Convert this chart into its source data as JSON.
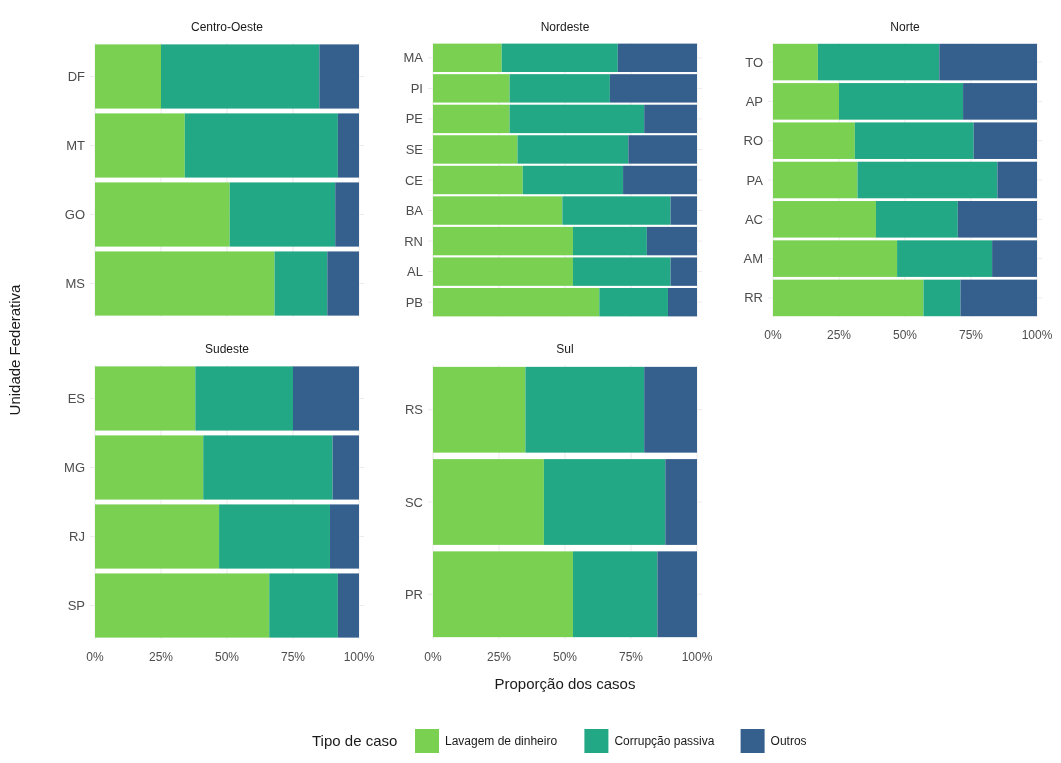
{
  "chart_data": [
    {
      "type": "bar",
      "title": "Centro-Oeste",
      "orientation": "horizontal",
      "stacked": true,
      "categories": [
        "DF",
        "MT",
        "GO",
        "MS"
      ],
      "xlim": [
        0,
        100
      ],
      "xticks": [
        {
          "value": 0,
          "label": "0%"
        },
        {
          "value": 25,
          "label": "25%"
        },
        {
          "value": 50,
          "label": "50%"
        },
        {
          "value": 75,
          "label": "75%"
        },
        {
          "value": 100,
          "label": "100%"
        }
      ],
      "tick_labels": "y",
      "grid": true,
      "ylabel": "Unidade Federativa",
      "legend": "bottom",
      "legend_title": "Tipo de caso",
      "series": [
        {
          "name": "Lavagem de dinheiro",
          "color": "#7ad151",
          "values": [
            25,
            34,
            51,
            68
          ]
        },
        {
          "name": "Corrupção passiva",
          "color": "#22a884",
          "values": [
            60,
            58,
            40,
            20
          ]
        },
        {
          "name": "Outros",
          "color": "#355f8d",
          "values": [
            15,
            8,
            9,
            12
          ]
        }
      ]
    },
    {
      "type": "bar",
      "title": "Nordeste",
      "orientation": "horizontal",
      "stacked": true,
      "categories": [
        "MA",
        "PI",
        "PE",
        "SE",
        "CE",
        "BA",
        "RN",
        "AL",
        "PB"
      ],
      "xlim": [
        0,
        100
      ],
      "xticks": [
        {
          "value": 0,
          "label": "0%"
        },
        {
          "value": 25,
          "label": "25%"
        },
        {
          "value": 50,
          "label": "50%"
        },
        {
          "value": 75,
          "label": "75%"
        },
        {
          "value": 100,
          "label": "100%"
        }
      ],
      "tick_labels": "y",
      "grid": true,
      "series": [
        {
          "name": "Lavagem de dinheiro",
          "color": "#7ad151",
          "values": [
            26,
            29,
            29,
            32,
            34,
            49,
            53,
            53,
            63
          ]
        },
        {
          "name": "Corrupção passiva",
          "color": "#22a884",
          "values": [
            44,
            38,
            51,
            42,
            38,
            41,
            28,
            37,
            26
          ]
        },
        {
          "name": "Outros",
          "color": "#355f8d",
          "values": [
            30,
            33,
            20,
            26,
            28,
            10,
            19,
            10,
            11
          ]
        }
      ]
    },
    {
      "type": "bar",
      "title": "Norte",
      "orientation": "horizontal",
      "stacked": true,
      "categories": [
        "TO",
        "AP",
        "RO",
        "PA",
        "AC",
        "AM",
        "RR"
      ],
      "xlim": [
        0,
        100
      ],
      "xticks": [
        {
          "value": 0,
          "label": "0%"
        },
        {
          "value": 25,
          "label": "25%"
        },
        {
          "value": 50,
          "label": "50%"
        },
        {
          "value": 75,
          "label": "75%"
        },
        {
          "value": 100,
          "label": "100%"
        }
      ],
      "grid": true,
      "series": [
        {
          "name": "Lavagem de dinheiro",
          "color": "#7ad151",
          "values": [
            17,
            25,
            31,
            32,
            39,
            47,
            57
          ]
        },
        {
          "name": "Corrupção passiva",
          "color": "#22a884",
          "values": [
            46,
            47,
            45,
            53,
            31,
            36,
            14
          ]
        },
        {
          "name": "Outros",
          "color": "#355f8d",
          "values": [
            37,
            28,
            24,
            15,
            30,
            17,
            29
          ]
        }
      ]
    },
    {
      "type": "bar",
      "title": "Sudeste",
      "orientation": "horizontal",
      "stacked": true,
      "categories": [
        "ES",
        "MG",
        "RJ",
        "SP"
      ],
      "xlim": [
        0,
        100
      ],
      "xticks": [
        {
          "value": 0,
          "label": "0%"
        },
        {
          "value": 25,
          "label": "25%"
        },
        {
          "value": 50,
          "label": "50%"
        },
        {
          "value": 75,
          "label": "75%"
        },
        {
          "value": 100,
          "label": "100%"
        }
      ],
      "grid": true,
      "series": [
        {
          "name": "Lavagem de dinheiro",
          "color": "#7ad151",
          "values": [
            38,
            41,
            47,
            66
          ]
        },
        {
          "name": "Corrupção passiva",
          "color": "#22a884",
          "values": [
            37,
            49,
            42,
            26
          ]
        },
        {
          "name": "Outros",
          "color": "#355f8d",
          "values": [
            25,
            10,
            11,
            8
          ]
        }
      ]
    },
    {
      "type": "bar",
      "title": "Sul",
      "orientation": "horizontal",
      "stacked": true,
      "categories": [
        "RS",
        "SC",
        "PR"
      ],
      "xlim": [
        0,
        100
      ],
      "xticks": [
        {
          "value": 0,
          "label": "0%"
        },
        {
          "value": 25,
          "label": "25%"
        },
        {
          "value": 50,
          "label": "50%"
        },
        {
          "value": 75,
          "label": "75%"
        },
        {
          "value": 100,
          "label": "100%"
        }
      ],
      "grid": true,
      "xlabel": "Proporção dos casos",
      "series": [
        {
          "name": "Lavagem de dinheiro",
          "color": "#7ad151",
          "values": [
            35,
            42,
            53
          ]
        },
        {
          "name": "Corrupção passiva",
          "color": "#22a884",
          "values": [
            45,
            46,
            32
          ]
        },
        {
          "name": "Outros",
          "color": "#355f8d",
          "values": [
            20,
            12,
            15
          ]
        }
      ]
    }
  ]
}
